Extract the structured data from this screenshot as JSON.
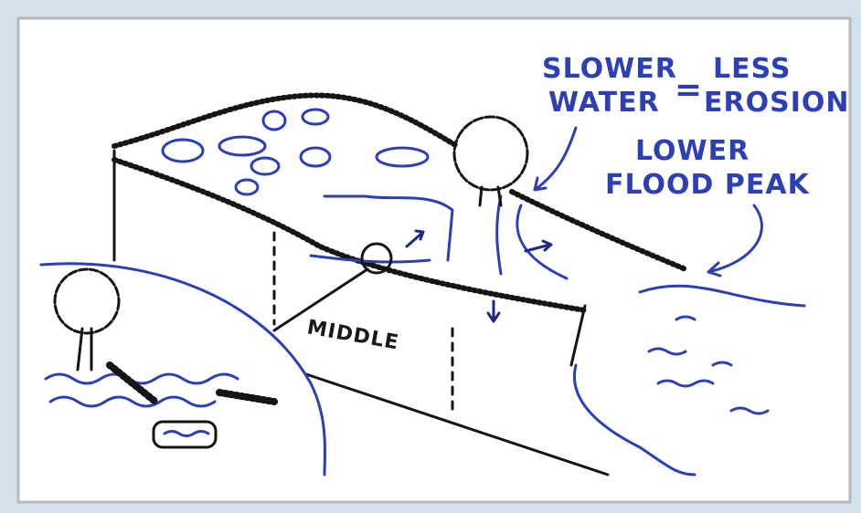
{
  "annotations": [
    {
      "lines": [
        "SLOWER",
        "WATER"
      ]
    },
    {
      "text": "="
    },
    {
      "lines": [
        "LESS",
        "EROSION"
      ]
    },
    {
      "lines": [
        "LOWER",
        "FLOOD PEAK"
      ]
    }
  ],
  "labels": [
    "MIDDLE"
  ]
}
